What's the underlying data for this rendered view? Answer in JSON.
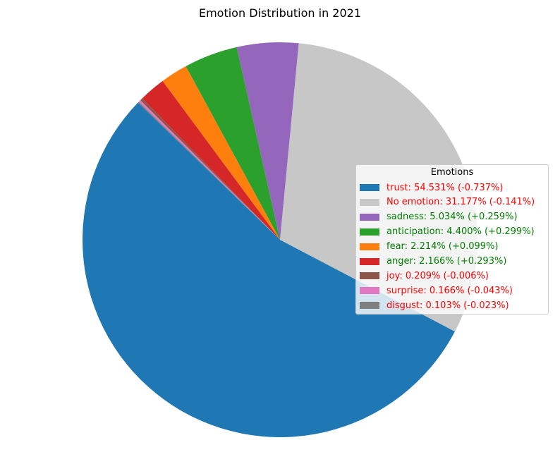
{
  "chart_data": {
    "type": "pie",
    "title": "Emotion Distribution in 2021",
    "legend_title": "Emotions",
    "legend_position": "right",
    "slices": [
      {
        "label": "trust: 54.531% (-0.737%)",
        "value": 54.531,
        "color": "#1f77b4",
        "label_color": "#ff0000"
      },
      {
        "label": "No emotion: 31.177% (-0.141%)",
        "value": 31.177,
        "color": "#c7c7c7",
        "label_color": "#ff0000"
      },
      {
        "label": "sadness: 5.034% (+0.259%)",
        "value": 5.034,
        "color": "#9467bd",
        "label_color": "#008000"
      },
      {
        "label": "anticipation: 4.400% (+0.299%)",
        "value": 4.4,
        "color": "#2ca02c",
        "label_color": "#008000"
      },
      {
        "label": "fear: 2.214% (+0.099%)",
        "value": 2.214,
        "color": "#ff7f0e",
        "label_color": "#008000"
      },
      {
        "label": "anger: 2.166% (+0.293%)",
        "value": 2.166,
        "color": "#d62728",
        "label_color": "#008000"
      },
      {
        "label": "joy: 0.209% (-0.006%)",
        "value": 0.209,
        "color": "#8c564b",
        "label_color": "#ff0000"
      },
      {
        "label": "surprise: 0.166% (-0.043%)",
        "value": 0.166,
        "color": "#e377c2",
        "label_color": "#ff0000"
      },
      {
        "label": "disgust: 0.103% (-0.023%)",
        "value": 0.103,
        "color": "#7f7f7f",
        "label_color": "#ff0000"
      }
    ]
  }
}
